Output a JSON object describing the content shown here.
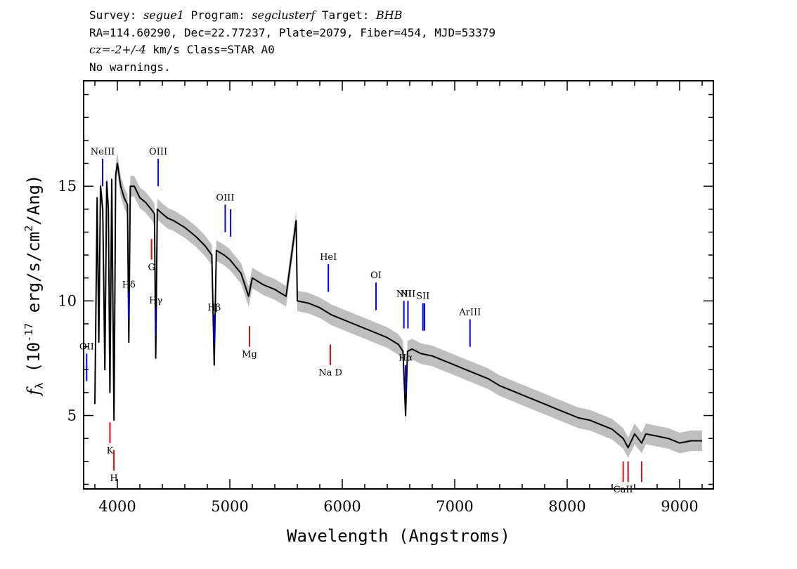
{
  "header": {
    "survey_label": "Survey:",
    "survey": "segue1",
    "program_label": "Program:",
    "program": "segclusterf",
    "target_label": "Target:",
    "target": "BHB",
    "line2": "RA=114.60290, Dec=22.77237, Plate=2079, Fiber=454, MJD=53379",
    "cz_label": "cz=",
    "cz_value": "-2+/-4",
    "cz_unit": " km/s Class=STAR A0",
    "line4": "No warnings."
  },
  "colors": {
    "emission": "#0000ff",
    "absorption": "#ff0000",
    "flux": "#000000",
    "error_band": "#bebebe"
  },
  "chart_data": {
    "type": "line",
    "xlabel": "Wavelength (Angstroms)",
    "ylabel_prefix": "f",
    "ylabel_sub": "λ",
    "ylabel_rest": " (10",
    "ylabel_exp": "-17",
    "ylabel_tail": " erg/s/cm",
    "ylabel_exp2": "2",
    "ylabel_end": "/Ang)",
    "xlim": [
      3700,
      9300
    ],
    "ylim": [
      1.8,
      19.6
    ],
    "xticks": [
      4000,
      5000,
      6000,
      7000,
      8000,
      9000
    ],
    "xtick_labels": [
      "4000",
      "5000",
      "6000",
      "7000",
      "8000",
      "9000"
    ],
    "yticks": [
      5,
      10,
      15
    ],
    "ytick_labels": [
      "5",
      "10",
      "15"
    ],
    "grid": false,
    "series": [
      {
        "x": [
          3800,
          3820,
          3835,
          3850,
          3870,
          3889,
          3905,
          3920,
          3934,
          3950,
          3970,
          3985,
          4000,
          4030,
          4060,
          4090,
          4102,
          4115,
          4150,
          4200,
          4250,
          4300,
          4330,
          4341,
          4355,
          4400,
          4450,
          4500,
          4600,
          4700,
          4780,
          4840,
          4861,
          4880,
          4950,
          5000,
          5100,
          5167,
          5200,
          5300,
          5400,
          5500,
          5590,
          5600,
          5700,
          5800,
          5900,
          6000,
          6100,
          6200,
          6300,
          6400,
          6500,
          6540,
          6563,
          6580,
          6620,
          6700,
          6800,
          6900,
          7000,
          7100,
          7200,
          7300,
          7400,
          7500,
          7600,
          7700,
          7800,
          7900,
          8000,
          8100,
          8200,
          8300,
          8400,
          8498,
          8542,
          8600,
          8662,
          8700,
          8800,
          8900,
          9000,
          9100,
          9200
        ],
        "y": [
          5.5,
          14.5,
          8.2,
          15.0,
          14.0,
          7.0,
          15.2,
          14.0,
          6.0,
          15.3,
          4.8,
          15.5,
          16.0,
          15.0,
          14.5,
          14.2,
          8.2,
          15.0,
          15.0,
          14.5,
          14.3,
          14.0,
          13.8,
          7.5,
          14.0,
          13.8,
          13.6,
          13.5,
          13.2,
          12.8,
          12.4,
          12.0,
          7.2,
          12.2,
          12.0,
          11.8,
          11.2,
          10.2,
          11.0,
          10.7,
          10.5,
          10.2,
          13.5,
          10.0,
          9.9,
          9.7,
          9.4,
          9.2,
          9.0,
          8.8,
          8.6,
          8.4,
          8.1,
          7.8,
          5.0,
          7.8,
          7.9,
          7.7,
          7.6,
          7.4,
          7.2,
          7.0,
          6.8,
          6.6,
          6.3,
          6.1,
          5.9,
          5.7,
          5.5,
          5.3,
          5.1,
          4.9,
          4.8,
          4.6,
          4.4,
          4.0,
          3.6,
          4.2,
          3.8,
          4.2,
          4.1,
          4.0,
          3.8,
          3.9,
          3.9
        ]
      }
    ],
    "emission_lines": [
      {
        "label": "OII",
        "x": 3727
      },
      {
        "label": "NeIII",
        "x": 3869
      },
      {
        "label": "Hδ",
        "x": 4102
      },
      {
        "label": "Hγ",
        "x": 4341
      },
      {
        "label": "OIII",
        "x": 4363
      },
      {
        "label": "Hβ",
        "x": 4861
      },
      {
        "label": "OIII",
        "x": 4959
      },
      {
        "label": "",
        "x": 5007
      },
      {
        "label": "HeI",
        "x": 5876
      },
      {
        "label": "OI",
        "x": 6300
      },
      {
        "label": "NII",
        "x": 6548
      },
      {
        "label": "Hα",
        "x": 6563
      },
      {
        "label": "NII",
        "x": 6584
      },
      {
        "label": "SII",
        "x": 6717
      },
      {
        "label": "",
        "x": 6731
      },
      {
        "label": "ArIII",
        "x": 7136
      }
    ],
    "absorption_lines": [
      {
        "label": "K",
        "x": 3934
      },
      {
        "label": "H",
        "x": 3969
      },
      {
        "label": "G",
        "x": 4304
      },
      {
        "label": "Mg",
        "x": 5175
      },
      {
        "label": "Na D",
        "x": 5894
      },
      {
        "label": "CaII",
        "x": 8498
      },
      {
        "label": "",
        "x": 8542
      },
      {
        "label": "",
        "x": 8662
      }
    ]
  }
}
